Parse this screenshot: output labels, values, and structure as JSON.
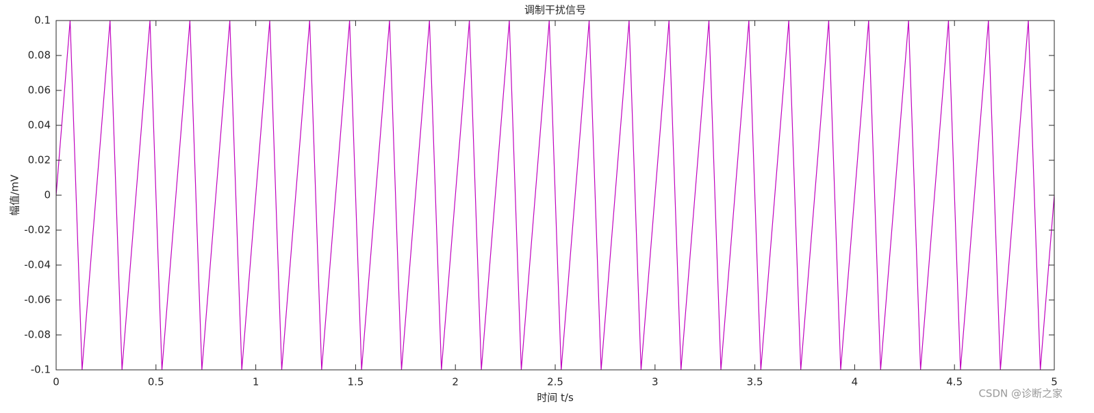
{
  "chart_data": {
    "type": "line",
    "title": "调制干扰信号",
    "xlabel": "时间 t/s",
    "ylabel": "幅值/mV",
    "watermark": "CSDN @诊断之家",
    "x": [
      0,
      0.07,
      0.13,
      0.2,
      0.27,
      0.33,
      0.4,
      0.47,
      0.53,
      0.6,
      0.67,
      0.73,
      0.8,
      0.87,
      0.93,
      1,
      1.07,
      1.13,
      1.2,
      1.27,
      1.33,
      1.4,
      1.47,
      1.53,
      1.6,
      1.67,
      1.73,
      1.8,
      1.87,
      1.93,
      2,
      2.07,
      2.13,
      2.2,
      2.27,
      2.33,
      2.4,
      2.47,
      2.53,
      2.6,
      2.67,
      2.73,
      2.8,
      2.87,
      2.93,
      3,
      3.07,
      3.13,
      3.2,
      3.27,
      3.33,
      3.4,
      3.47,
      3.53,
      3.6,
      3.67,
      3.73,
      3.8,
      3.87,
      3.93,
      4,
      4.07,
      4.13,
      4.2,
      4.27,
      4.33,
      4.4,
      4.47,
      4.53,
      4.6,
      4.67,
      4.73,
      4.8,
      4.87,
      4.93,
      5
    ],
    "series": [
      {
        "color": "#bf00bf",
        "values": [
          0,
          0.1,
          -0.1,
          0,
          0.1,
          -0.1,
          0,
          0.1,
          -0.1,
          0,
          0.1,
          -0.1,
          0,
          0.1,
          -0.1,
          0,
          0.1,
          -0.1,
          0,
          0.1,
          -0.1,
          0,
          0.1,
          -0.1,
          0,
          0.1,
          -0.1,
          0,
          0.1,
          -0.1,
          0,
          0.1,
          -0.1,
          0,
          0.1,
          -0.1,
          0,
          0.1,
          -0.1,
          0,
          0.1,
          -0.1,
          0,
          0.1,
          -0.1,
          0,
          0.1,
          -0.1,
          0,
          0.1,
          -0.1,
          0,
          0.1,
          -0.1,
          0,
          0.1,
          -0.1,
          0,
          0.1,
          -0.1,
          0,
          0.1,
          -0.1,
          0,
          0.1,
          -0.1,
          0,
          0.1,
          -0.1,
          0,
          0.1,
          -0.1,
          0,
          0.1,
          -0.1,
          0
        ]
      }
    ],
    "xlim": [
      0,
      5
    ],
    "xticks": [
      0,
      0.5,
      1,
      1.5,
      2,
      2.5,
      3,
      3.5,
      4,
      4.5,
      5
    ],
    "ylim": [
      -0.1,
      0.1
    ],
    "yticks": [
      -0.1,
      -0.08,
      -0.06,
      -0.04,
      -0.02,
      0,
      0.02,
      0.04,
      0.06,
      0.08,
      0.1
    ],
    "grid": false
  }
}
